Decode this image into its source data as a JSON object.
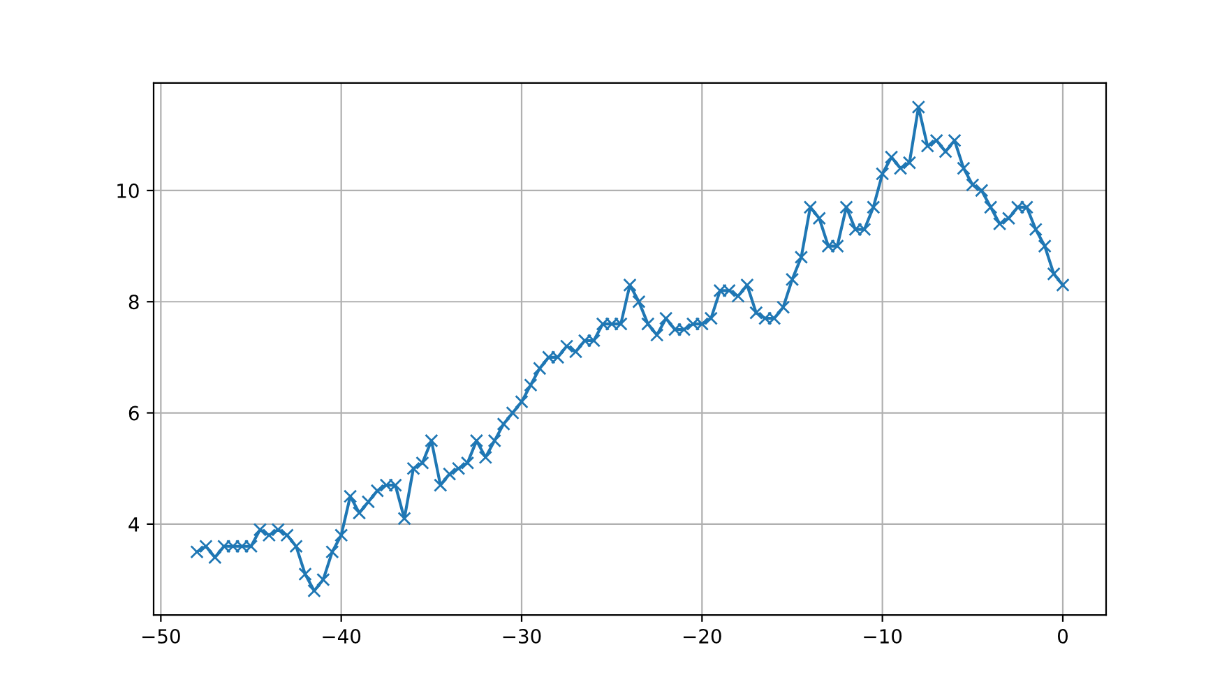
{
  "chart_data": {
    "type": "line",
    "x": [
      -48,
      -47.5,
      -47,
      -46.5,
      -46,
      -45.5,
      -45,
      -44.5,
      -44,
      -43.5,
      -43,
      -42.5,
      -42,
      -41.5,
      -41,
      -40.5,
      -40,
      -39.5,
      -39,
      -38.5,
      -38,
      -37.5,
      -37,
      -36.5,
      -36,
      -35.5,
      -35,
      -34.5,
      -34,
      -33.5,
      -33,
      -32.5,
      -32,
      -31.5,
      -31,
      -30.5,
      -30,
      -29.5,
      -29,
      -28.5,
      -28,
      -27.5,
      -27,
      -26.5,
      -26,
      -25.5,
      -25,
      -24.5,
      -24,
      -23.5,
      -23,
      -22.5,
      -22,
      -21.5,
      -21,
      -20.5,
      -20,
      -19.5,
      -19,
      -18.5,
      -18,
      -17.5,
      -17,
      -16.5,
      -16,
      -15.5,
      -15,
      -14.5,
      -14,
      -13.5,
      -13,
      -12.5,
      -12,
      -11.5,
      -11,
      -10.5,
      -10,
      -9.5,
      -9,
      -8.5,
      -8,
      -7.5,
      -7,
      -6.5,
      -6,
      -5.5,
      -5,
      -4.5,
      -4,
      -3.5,
      -3,
      -2.5,
      -2,
      -1.5,
      -1,
      -0.5,
      0
    ],
    "series": [
      {
        "color": "#1f77b4",
        "values": [
          3.5,
          3.6,
          3.4,
          3.6,
          3.6,
          3.6,
          3.6,
          3.9,
          3.8,
          3.9,
          3.8,
          3.6,
          3.1,
          2.8,
          3.0,
          3.5,
          3.8,
          4.5,
          4.2,
          4.4,
          4.6,
          4.7,
          4.7,
          4.1,
          5.0,
          5.1,
          5.5,
          4.7,
          4.9,
          5.0,
          5.1,
          5.5,
          5.2,
          5.5,
          5.8,
          6.0,
          6.2,
          6.5,
          6.8,
          7.0,
          7.0,
          7.2,
          7.1,
          7.3,
          7.3,
          7.6,
          7.6,
          7.6,
          8.3,
          8.0,
          7.6,
          7.4,
          7.7,
          7.5,
          7.5,
          7.6,
          7.6,
          7.7,
          8.2,
          8.2,
          8.1,
          8.3,
          7.8,
          7.7,
          7.7,
          7.9,
          8.4,
          8.8,
          9.7,
          9.5,
          9.0,
          9.0,
          9.7,
          9.3,
          9.3,
          9.7,
          10.3,
          10.6,
          10.4,
          10.5,
          11.5,
          10.8,
          10.9,
          10.7,
          10.9,
          10.4,
          10.1,
          10.0,
          9.7,
          9.4,
          9.5,
          9.7,
          9.7,
          9.3,
          9.0,
          8.5,
          8.3
        ]
      }
    ],
    "xlim": [
      -50.4,
      2.4
    ],
    "xticks": [
      {
        "value": -50,
        "label": "−50"
      },
      {
        "value": -40,
        "label": "−40"
      },
      {
        "value": -30,
        "label": "−30"
      },
      {
        "value": -20,
        "label": "−20"
      },
      {
        "value": -10,
        "label": "−10"
      },
      0
    ],
    "ylim": [
      2.365,
      11.935
    ],
    "yticks": [
      4,
      6,
      8,
      10
    ],
    "grid": true,
    "marker": "cross",
    "line_style": "solid"
  }
}
